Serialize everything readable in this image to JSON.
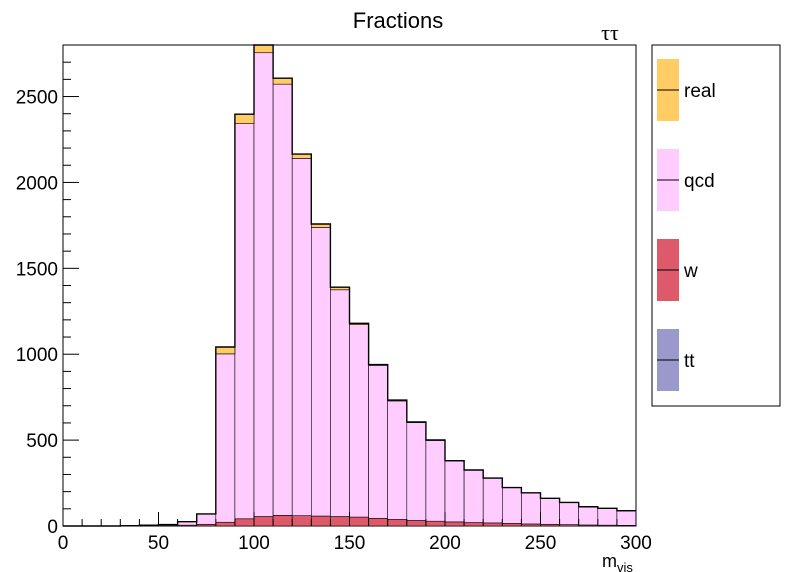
{
  "chart_data": {
    "type": "bar",
    "title": "Fractions",
    "corner_label": "ττ",
    "xlabel": "m",
    "xlabel_sub": "vis",
    "xlim": [
      0,
      300
    ],
    "ylim": [
      0,
      2800
    ],
    "x_ticks": [
      "0",
      "50",
      "100",
      "150",
      "200",
      "250",
      "300"
    ],
    "y_ticks": [
      "0",
      "500",
      "1000",
      "1500",
      "2000",
      "2500"
    ],
    "stacked": true,
    "bin_edges": [
      0,
      10,
      20,
      30,
      40,
      50,
      60,
      70,
      80,
      90,
      100,
      110,
      120,
      130,
      140,
      150,
      160,
      170,
      180,
      190,
      200,
      210,
      220,
      230,
      240,
      250,
      260,
      270,
      280,
      290,
      300
    ],
    "series": [
      {
        "name": "tt",
        "color": "#9999cc",
        "values": [
          0,
          0,
          0,
          0,
          0,
          0,
          0,
          0,
          0,
          0,
          0,
          0,
          0,
          0,
          0,
          0,
          0,
          0,
          0,
          0,
          0,
          0,
          0,
          0,
          0,
          0,
          0,
          0,
          0,
          0
        ]
      },
      {
        "name": "w",
        "color": "#de5a6a",
        "values": [
          0,
          0,
          0,
          0,
          1,
          2,
          5,
          10,
          22,
          42,
          55,
          62,
          60,
          58,
          55,
          52,
          45,
          38,
          32,
          28,
          24,
          20,
          18,
          15,
          12,
          10,
          8,
          6,
          5,
          4
        ]
      },
      {
        "name": "qcd",
        "color": "#ffccff",
        "values": [
          0,
          0,
          0,
          2,
          4,
          6,
          20,
          60,
          980,
          2300,
          2700,
          2510,
          2080,
          1680,
          1320,
          1120,
          890,
          690,
          570,
          470,
          355,
          305,
          260,
          208,
          180,
          150,
          128,
          105,
          97,
          84
        ]
      },
      {
        "name": "real",
        "color": "#ffcc66",
        "values": [
          0,
          0,
          0,
          0,
          0,
          0,
          0,
          0,
          40,
          55,
          60,
          35,
          25,
          20,
          15,
          8,
          5,
          5,
          4,
          3,
          1,
          1,
          1,
          1,
          1,
          1,
          1,
          1,
          1,
          1
        ]
      }
    ],
    "legend": [
      "real",
      "qcd",
      "w",
      "tt"
    ],
    "legend_placement": "right",
    "grid": false
  }
}
